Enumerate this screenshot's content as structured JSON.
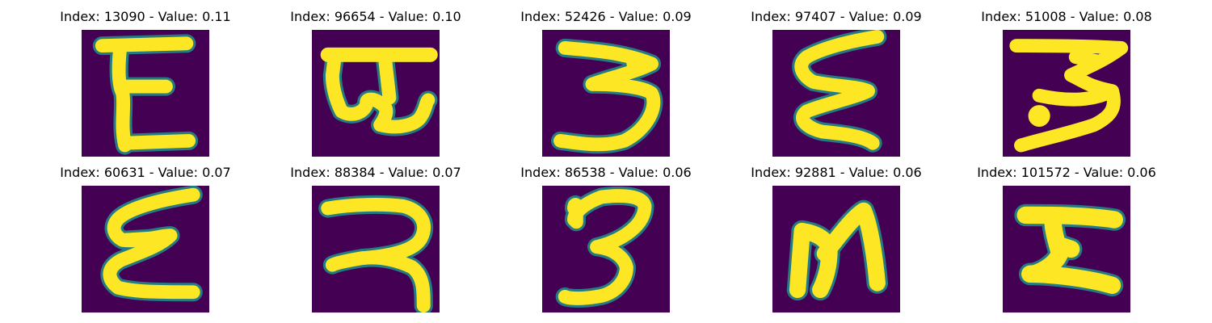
{
  "colors": {
    "background": "#440154",
    "stroke_mid": "#21918c",
    "stroke_core": "#fde725"
  },
  "panels": [
    {
      "title": "Index: 13090 - Value: 0.11",
      "glyph": "E"
    },
    {
      "title": "Index: 96654 - Value: 0.10",
      "glyph": "E"
    },
    {
      "title": "Index: 52426 - Value: 0.09",
      "glyph": "3"
    },
    {
      "title": "Index: 97407 - Value: 0.09",
      "glyph": "3"
    },
    {
      "title": "Index: 51008 - Value: 0.08",
      "glyph": "3"
    },
    {
      "title": "Index: 60631 - Value: 0.07",
      "glyph": "3"
    },
    {
      "title": "Index: 88384 - Value: 0.07",
      "glyph": "3"
    },
    {
      "title": "Index: 86538 - Value: 0.06",
      "glyph": "3"
    },
    {
      "title": "Index: 92881 - Value: 0.06",
      "glyph": "N"
    },
    {
      "title": "Index: 101572 - Value: 0.06",
      "glyph": "I"
    }
  ]
}
